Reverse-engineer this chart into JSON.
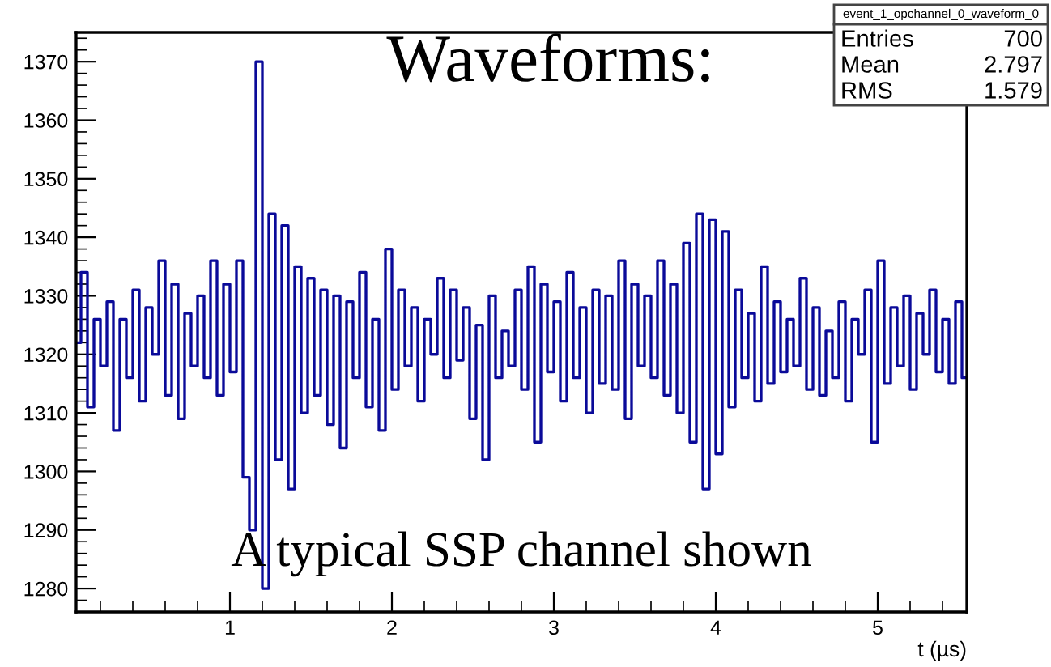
{
  "chart_data": {
    "type": "step",
    "title": "Waveforms:",
    "xlabel": "t (µs)",
    "annotations": [
      "A typical SSP channel shown",
      "event_1_opchannel_0_waveform_0",
      "Entries",
      "700",
      "Mean",
      "2.797",
      "RMS",
      "1.579"
    ],
    "xlim": [
      0.05,
      5.55
    ],
    "xticks": [
      1,
      2,
      3,
      4,
      5
    ],
    "ylim": [
      1276,
      1375
    ],
    "yticks": [
      1280,
      1290,
      1300,
      1310,
      1320,
      1330,
      1340,
      1350,
      1360,
      1370
    ],
    "grid": false,
    "line_style": "solid",
    "marker": "none",
    "series": [
      {
        "color": "#0a0a99",
        "x": [
          0.06,
          0.1,
          0.14,
          0.18,
          0.22,
          0.26,
          0.3,
          0.34,
          0.38,
          0.42,
          0.46,
          0.5,
          0.54,
          0.58,
          0.62,
          0.66,
          0.7,
          0.74,
          0.78,
          0.82,
          0.86,
          0.9,
          0.94,
          0.98,
          1.02,
          1.06,
          1.1,
          1.14,
          1.18,
          1.22,
          1.26,
          1.3,
          1.34,
          1.38,
          1.42,
          1.46,
          1.5,
          1.54,
          1.58,
          1.62,
          1.66,
          1.7,
          1.74,
          1.78,
          1.82,
          1.86,
          1.9,
          1.94,
          1.98,
          2.02,
          2.06,
          2.1,
          2.14,
          2.18,
          2.22,
          2.26,
          2.3,
          2.34,
          2.38,
          2.42,
          2.46,
          2.5,
          2.54,
          2.58,
          2.62,
          2.66,
          2.7,
          2.74,
          2.78,
          2.82,
          2.86,
          2.9,
          2.94,
          2.98,
          3.02,
          3.06,
          3.1,
          3.14,
          3.18,
          3.22,
          3.26,
          3.3,
          3.34,
          3.38,
          3.42,
          3.46,
          3.5,
          3.54,
          3.58,
          3.62,
          3.66,
          3.7,
          3.74,
          3.78,
          3.82,
          3.86,
          3.9,
          3.94,
          3.98,
          4.02,
          4.06,
          4.1,
          4.14,
          4.18,
          4.22,
          4.26,
          4.3,
          4.34,
          4.38,
          4.42,
          4.46,
          4.5,
          4.54,
          4.58,
          4.62,
          4.66,
          4.7,
          4.74,
          4.78,
          4.82,
          4.86,
          4.9,
          4.94,
          4.98,
          5.02,
          5.06,
          5.1,
          5.14,
          5.18,
          5.22,
          5.26,
          5.3,
          5.34,
          5.38,
          5.42,
          5.46,
          5.5,
          5.54
        ],
        "values": [
          1322,
          1334,
          1311,
          1326,
          1318,
          1329,
          1307,
          1326,
          1316,
          1331,
          1312,
          1328,
          1320,
          1336,
          1313,
          1332,
          1309,
          1327,
          1318,
          1330,
          1316,
          1336,
          1313,
          1332,
          1317,
          1336,
          1299,
          1290,
          1370,
          1280,
          1344,
          1302,
          1342,
          1297,
          1335,
          1310,
          1333,
          1313,
          1331,
          1308,
          1330,
          1304,
          1329,
          1316,
          1334,
          1311,
          1326,
          1307,
          1338,
          1314,
          1331,
          1318,
          1328,
          1312,
          1326,
          1320,
          1333,
          1316,
          1331,
          1319,
          1328,
          1309,
          1325,
          1302,
          1330,
          1316,
          1324,
          1318,
          1331,
          1314,
          1335,
          1305,
          1332,
          1317,
          1329,
          1312,
          1334,
          1316,
          1328,
          1310,
          1331,
          1315,
          1330,
          1314,
          1336,
          1309,
          1332,
          1318,
          1330,
          1316,
          1336,
          1313,
          1332,
          1310,
          1339,
          1305,
          1344,
          1297,
          1343,
          1303,
          1341,
          1311,
          1331,
          1316,
          1327,
          1312,
          1335,
          1315,
          1329,
          1317,
          1326,
          1318,
          1333,
          1314,
          1328,
          1313,
          1324,
          1316,
          1329,
          1312,
          1326,
          1320,
          1331,
          1305,
          1336,
          1315,
          1328,
          1318,
          1330,
          1314,
          1327,
          1320,
          1331,
          1317,
          1326,
          1315,
          1329,
          1316
        ]
      }
    ]
  }
}
